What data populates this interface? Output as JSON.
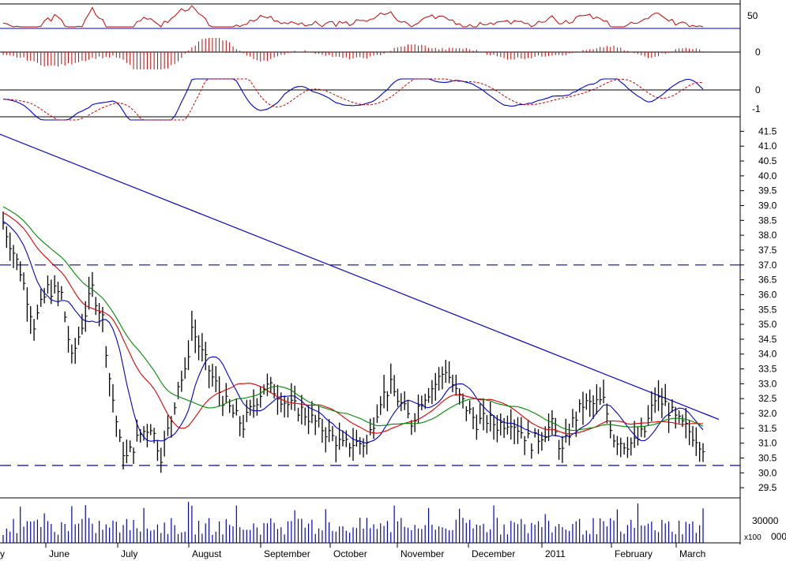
{
  "chart_data": {
    "type": "stock",
    "months": [
      "June",
      "July",
      "August",
      "September",
      "October",
      "November",
      "December",
      "2011",
      "February",
      "March"
    ],
    "year_label": "2011",
    "price_ticks": [
      "41.5",
      "41.0",
      "40.5",
      "40.0",
      "39.5",
      "39.0",
      "38.5",
      "38.0",
      "37.5",
      "37.0",
      "36.5",
      "36.0",
      "35.5",
      "35.0",
      "34.5",
      "34.0",
      "33.5",
      "33.0",
      "32.5",
      "32.0",
      "31.5",
      "31.0",
      "30.5",
      "30.0",
      "29.5"
    ],
    "price_tick_values": [
      41.5,
      41.0,
      40.5,
      40.0,
      39.5,
      39.0,
      38.5,
      38.0,
      37.5,
      37.0,
      36.5,
      36.0,
      35.5,
      35.0,
      34.5,
      34.0,
      33.5,
      33.0,
      32.5,
      32.0,
      31.5,
      31.0,
      30.5,
      30.0,
      29.5
    ],
    "rsi_ticks": [
      "50",
      "0"
    ],
    "macd_hist_ticks": [
      "0"
    ],
    "macd_ticks": [
      "0",
      "-1"
    ],
    "volume_ticks": [
      "30000"
    ],
    "volume_multiplier": "x100",
    "partial_axis_labels": [
      "y",
      "000"
    ],
    "colors": {
      "price": "#000000",
      "ma_blue": "#0000cc",
      "ma_red": "#dd0000",
      "ma_green": "#008800",
      "trend": "#0000cc",
      "level": "#0000cc",
      "rsi": "#cc0000",
      "hist": "#cc0000"
    },
    "horizontal_levels": [
      37.0,
      30.25
    ],
    "trendline": {
      "from": 41.4,
      "to": 31.8
    },
    "price_range": [
      29.3,
      41.8
    ]
  }
}
